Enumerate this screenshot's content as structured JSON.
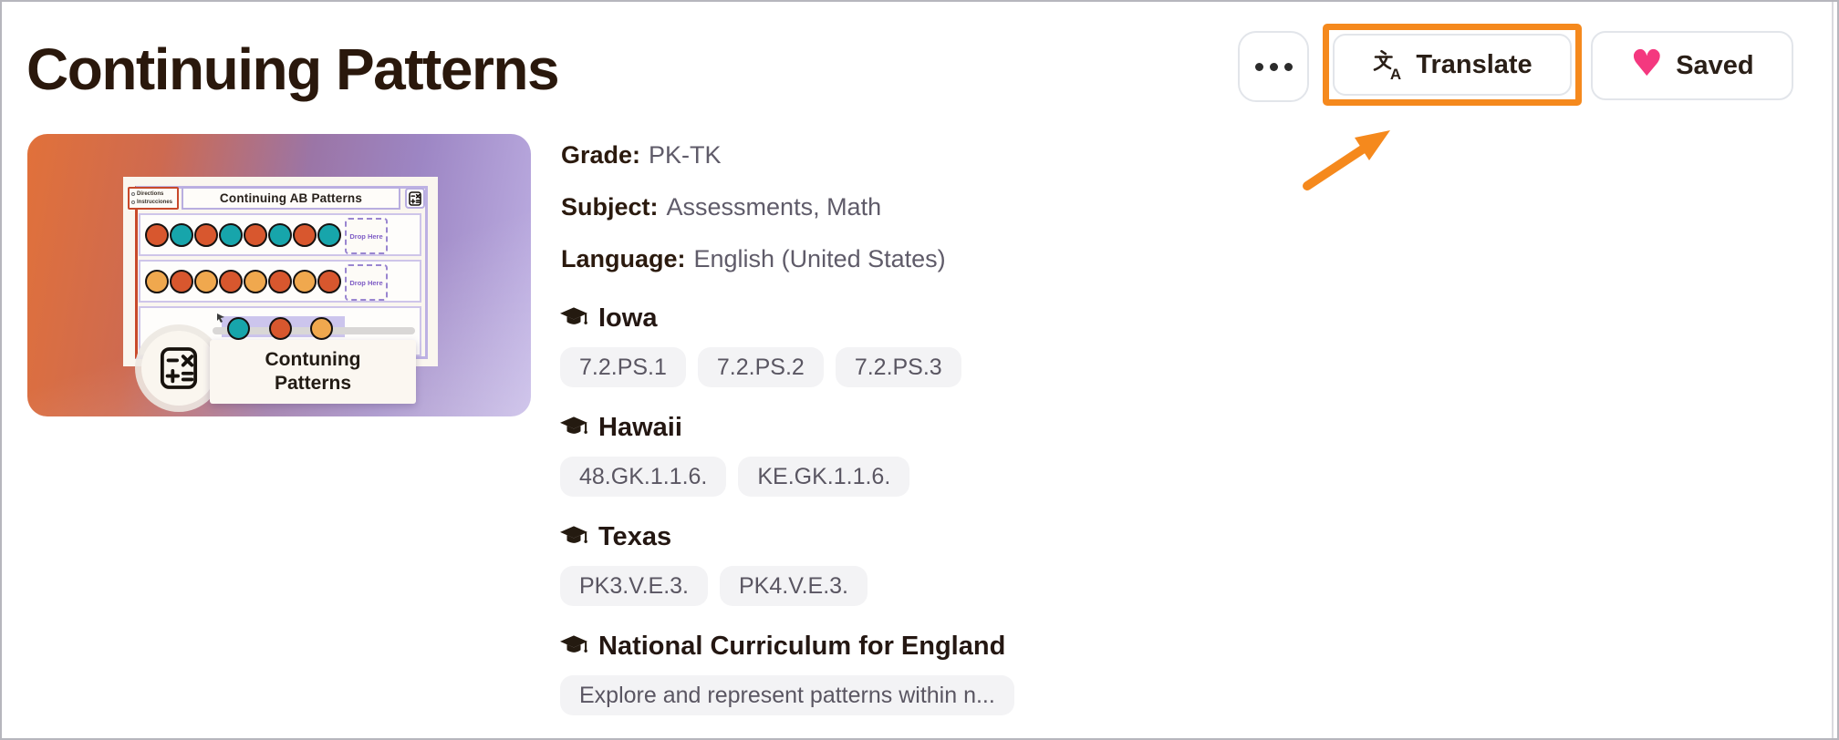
{
  "page": {
    "title": "Continuing Patterns"
  },
  "toolbar": {
    "translate_label": "Translate",
    "saved_label": "Saved",
    "more_icon": "three-dots",
    "highlight_color": "#F5891D",
    "heart_color": "#F4387F",
    "heart_glyph": "♥"
  },
  "details": {
    "grade_label": "Grade:",
    "grade_value": "PK-TK",
    "subject_label": "Subject:",
    "subject_value": "Assessments, Math",
    "language_label": "Language:",
    "language_value": "English (United States)"
  },
  "standards": {
    "sections": [
      {
        "region": "Iowa",
        "codes": [
          "7.2.PS.1",
          "7.2.PS.2",
          "7.2.PS.3"
        ]
      },
      {
        "region": "Hawaii",
        "codes": [
          "48.GK.1.1.6.",
          "KE.GK.1.1.6."
        ]
      },
      {
        "region": "Texas",
        "codes": [
          "PK3.V.E.3.",
          "PK4.V.E.3."
        ]
      },
      {
        "region": "National Curriculum for England",
        "codes": [
          "Explore and represent patterns within n..."
        ]
      }
    ]
  },
  "thumbnail": {
    "slide_title": "Continuing AB Patterns",
    "directions_line1": "Directions",
    "directions_line2": "Instrucciones",
    "drop_label": "Drop Here",
    "card_line1": "Contuning",
    "card_line2": "Patterns",
    "circle_colors": {
      "red": "#D8572E",
      "teal": "#17A5AB",
      "amber": "#F0A84E"
    },
    "row1_pattern": [
      "red",
      "teal",
      "red",
      "teal",
      "red",
      "teal",
      "red",
      "teal"
    ],
    "row2_pattern": [
      "amber",
      "red",
      "amber",
      "red",
      "amber",
      "red",
      "amber",
      "red"
    ],
    "row3_pattern": [
      "teal",
      "red",
      "amber"
    ]
  }
}
